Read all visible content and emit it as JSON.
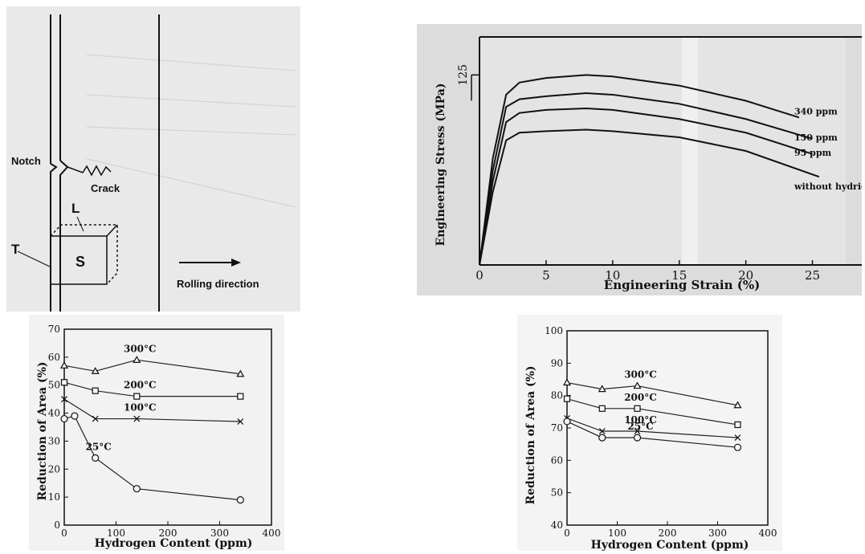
{
  "schematic": {
    "notch_label": "Notch",
    "crack_label": "Crack",
    "l_label": "L",
    "t_label": "T",
    "s_label": "S",
    "rolling_label": "Rolling direction"
  },
  "chart_data": [
    {
      "id": "stress-strain",
      "type": "line",
      "xlabel": "Engineering Strain (%)",
      "ylabel": "Engineering Stress (MPa)",
      "xlim": [
        0,
        27.5
      ],
      "ylim": [
        0,
        150
      ],
      "x_ticks": [
        0,
        5,
        10,
        15,
        20,
        25
      ],
      "y_ticks": [
        125
      ],
      "series": [
        {
          "name": "340 ppm",
          "x": [
            0,
            1,
            2,
            3,
            5,
            8,
            10,
            15,
            20,
            24
          ],
          "y": [
            0,
            70,
            112,
            120,
            123,
            125,
            124,
            118,
            108,
            97
          ]
        },
        {
          "name": "150 ppm",
          "x": [
            0,
            1,
            2,
            3,
            5,
            8,
            10,
            15,
            20,
            25
          ],
          "y": [
            0,
            62,
            104,
            109,
            111,
            113,
            112,
            106,
            96,
            83
          ]
        },
        {
          "name": "95 ppm",
          "x": [
            0,
            1,
            2,
            3,
            5,
            8,
            10,
            15,
            20,
            25
          ],
          "y": [
            0,
            55,
            94,
            100,
            102,
            103,
            102,
            96,
            87,
            73
          ]
        },
        {
          "name": "without hydriding",
          "x": [
            0,
            1,
            2,
            3,
            5,
            8,
            10,
            15,
            20,
            25.5
          ],
          "y": [
            0,
            48,
            82,
            87,
            88,
            89,
            88,
            84,
            75,
            58
          ]
        }
      ]
    },
    {
      "id": "reduction-area-1",
      "type": "line",
      "xlabel": "Hydrogen Content (ppm)",
      "ylabel": "Reduction of Area (%)",
      "xlim": [
        0,
        400
      ],
      "ylim": [
        0,
        70
      ],
      "x_ticks": [
        0,
        100,
        200,
        300,
        400
      ],
      "y_ticks": [
        0,
        10,
        20,
        30,
        40,
        50,
        60,
        70
      ],
      "series": [
        {
          "name": "300°C",
          "marker": "triangle",
          "x": [
            0,
            60,
            140,
            340
          ],
          "y": [
            57,
            55,
            59,
            54
          ]
        },
        {
          "name": "200°C",
          "marker": "square",
          "x": [
            0,
            60,
            140,
            340
          ],
          "y": [
            51,
            48,
            46,
            46
          ]
        },
        {
          "name": "100°C",
          "marker": "cross",
          "x": [
            0,
            60,
            140,
            340
          ],
          "y": [
            45,
            38,
            38,
            37
          ]
        },
        {
          "name": "25°C",
          "marker": "circle",
          "x": [
            0,
            20,
            60,
            140,
            340
          ],
          "y": [
            38,
            39,
            24,
            13,
            9
          ]
        }
      ]
    },
    {
      "id": "reduction-area-2",
      "type": "line",
      "xlabel": "Hydrogen Content (ppm)",
      "ylabel": "Reduction of Area (%)",
      "xlim": [
        0,
        400
      ],
      "ylim": [
        40,
        100
      ],
      "x_ticks": [
        0,
        100,
        200,
        300,
        400
      ],
      "y_ticks": [
        40,
        50,
        60,
        70,
        80,
        90,
        100
      ],
      "series": [
        {
          "name": "300°C",
          "marker": "triangle",
          "x": [
            0,
            70,
            140,
            340
          ],
          "y": [
            84,
            82,
            83,
            77
          ]
        },
        {
          "name": "200°C",
          "marker": "square",
          "x": [
            0,
            70,
            140,
            340
          ],
          "y": [
            79,
            76,
            76,
            71
          ]
        },
        {
          "name": "100°C",
          "marker": "cross",
          "x": [
            0,
            70,
            140,
            340
          ],
          "y": [
            73,
            69,
            69,
            67
          ]
        },
        {
          "name": "25°C",
          "marker": "circle",
          "x": [
            0,
            70,
            140,
            340
          ],
          "y": [
            72,
            67,
            67,
            64
          ]
        }
      ]
    }
  ]
}
